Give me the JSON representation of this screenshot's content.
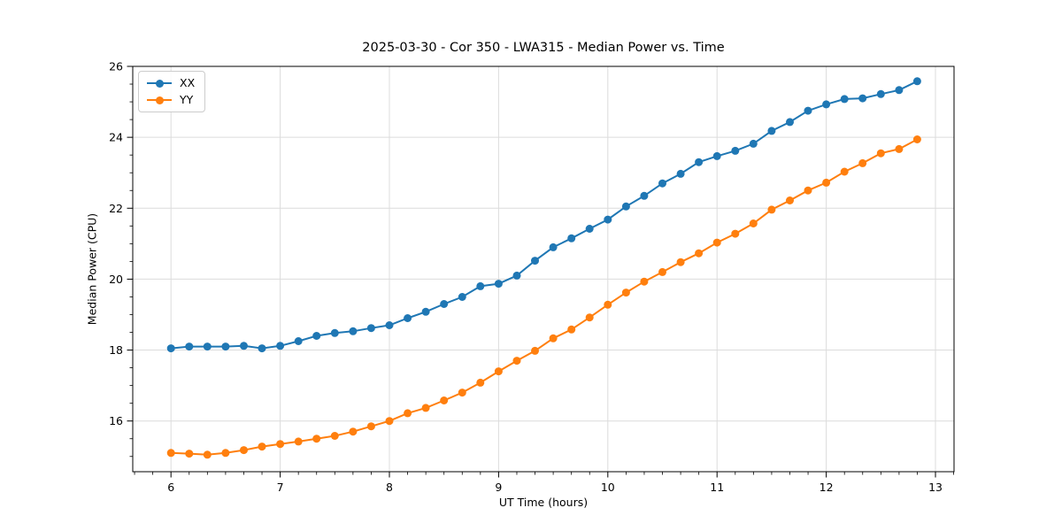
{
  "chart_data": {
    "type": "line",
    "title": "2025-03-30 - Cor 350 - LWA315 - Median Power vs. Time",
    "xlabel": "UT Time (hours)",
    "ylabel": "Median Power (CPU)",
    "xlim": [
      5.65,
      13.17
    ],
    "ylim": [
      14.57,
      26.0
    ],
    "xticks": [
      6,
      7,
      8,
      9,
      10,
      11,
      12,
      13
    ],
    "yticks": [
      16,
      18,
      20,
      22,
      24,
      26
    ],
    "x_minor_step": 0.16667,
    "y_minor_step": 0.5,
    "grid": "major",
    "grid_color": "#dcdcdc",
    "legend_position": "upper-left",
    "x": [
      6.0,
      6.167,
      6.333,
      6.5,
      6.667,
      6.833,
      7.0,
      7.167,
      7.333,
      7.5,
      7.667,
      7.833,
      8.0,
      8.167,
      8.333,
      8.5,
      8.667,
      8.833,
      9.0,
      9.167,
      9.333,
      9.5,
      9.667,
      9.833,
      10.0,
      10.167,
      10.333,
      10.5,
      10.667,
      10.833,
      11.0,
      11.167,
      11.333,
      11.5,
      11.667,
      11.833,
      12.0,
      12.167,
      12.333,
      12.5,
      12.667,
      12.833
    ],
    "series": [
      {
        "name": "XX",
        "color": "#1f77b4",
        "values": [
          18.05,
          18.1,
          18.1,
          18.1,
          18.12,
          18.05,
          18.12,
          18.25,
          18.4,
          18.48,
          18.53,
          18.62,
          18.7,
          18.9,
          19.08,
          19.3,
          19.5,
          19.8,
          19.87,
          20.1,
          20.52,
          20.9,
          21.15,
          21.42,
          21.68,
          22.05,
          22.35,
          22.7,
          22.97,
          23.3,
          23.47,
          23.62,
          23.82,
          24.18,
          24.43,
          24.75,
          24.93,
          25.08,
          25.1,
          25.22,
          25.33,
          25.58
        ]
      },
      {
        "name": "YY",
        "color": "#ff7f0e",
        "values": [
          15.1,
          15.08,
          15.05,
          15.1,
          15.18,
          15.28,
          15.35,
          15.42,
          15.5,
          15.58,
          15.7,
          15.85,
          16.0,
          16.22,
          16.37,
          16.58,
          16.8,
          17.08,
          17.4,
          17.7,
          17.98,
          18.33,
          18.58,
          18.92,
          19.28,
          19.62,
          19.93,
          20.2,
          20.48,
          20.73,
          21.03,
          21.28,
          21.57,
          21.96,
          22.22,
          22.5,
          22.72,
          23.03,
          23.27,
          23.55,
          23.67,
          23.94
        ]
      }
    ]
  }
}
